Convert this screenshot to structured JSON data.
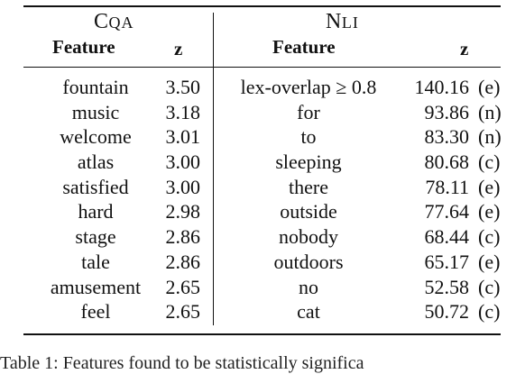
{
  "table": {
    "groups": {
      "cqa": {
        "title_first": "C",
        "title_rest": "QA"
      },
      "nli": {
        "title_first": "N",
        "title_rest": "LI"
      }
    },
    "headers": {
      "cqa_feature": "Feature",
      "cqa_z": "z",
      "nli_feature": "Feature",
      "nli_z": "z"
    },
    "rows": [
      {
        "cqa_feature": "fountain",
        "cqa_z": "3.50",
        "nli_feature": "lex-overlap ≥ 0.8",
        "nli_z": "140.16",
        "nli_label": "(e)"
      },
      {
        "cqa_feature": "music",
        "cqa_z": "3.18",
        "nli_feature": "for",
        "nli_z": "93.86",
        "nli_label": "(n)"
      },
      {
        "cqa_feature": "welcome",
        "cqa_z": "3.01",
        "nli_feature": "to",
        "nli_z": "83.30",
        "nli_label": "(n)"
      },
      {
        "cqa_feature": "atlas",
        "cqa_z": "3.00",
        "nli_feature": "sleeping",
        "nli_z": "80.68",
        "nli_label": "(c)"
      },
      {
        "cqa_feature": "satisfied",
        "cqa_z": "3.00",
        "nli_feature": "there",
        "nli_z": "78.11",
        "nli_label": "(e)"
      },
      {
        "cqa_feature": "hard",
        "cqa_z": "2.98",
        "nli_feature": "outside",
        "nli_z": "77.64",
        "nli_label": "(e)"
      },
      {
        "cqa_feature": "stage",
        "cqa_z": "2.86",
        "nli_feature": "nobody",
        "nli_z": "68.44",
        "nli_label": "(c)"
      },
      {
        "cqa_feature": "tale",
        "cqa_z": "2.86",
        "nli_feature": "outdoors",
        "nli_z": "65.17",
        "nli_label": "(e)"
      },
      {
        "cqa_feature": "amusement",
        "cqa_z": "2.65",
        "nli_feature": "no",
        "nli_z": "52.58",
        "nli_label": "(c)"
      },
      {
        "cqa_feature": "feel",
        "cqa_z": "2.65",
        "nli_feature": "cat",
        "nli_z": "50.72",
        "nli_label": "(c)"
      }
    ]
  },
  "caption": {
    "text": "Table 1: Features found to be statistically significa"
  }
}
